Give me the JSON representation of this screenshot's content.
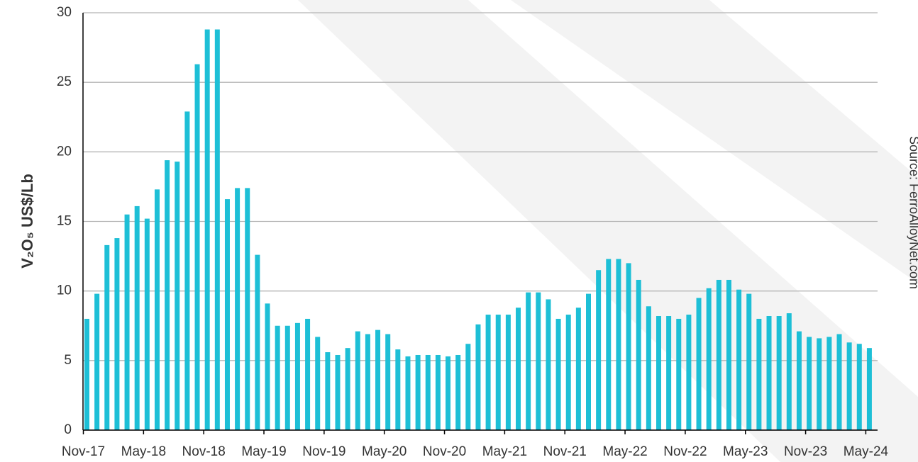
{
  "chart_data": {
    "type": "bar",
    "y_label": "V₂O₅ US$/Lb",
    "source": "Source: FerroAlloyNet.com",
    "categories": [
      "Nov-17",
      null,
      null,
      null,
      null,
      null,
      "May-18",
      null,
      null,
      null,
      null,
      null,
      "Nov-18",
      null,
      null,
      null,
      null,
      null,
      "May-19",
      null,
      null,
      null,
      null,
      null,
      "Nov-19",
      null,
      null,
      null,
      null,
      null,
      "May-20",
      null,
      null,
      null,
      null,
      null,
      "Nov-20",
      null,
      null,
      null,
      null,
      null,
      "May-21",
      null,
      null,
      null,
      null,
      null,
      "Nov-21",
      null,
      null,
      null,
      null,
      null,
      "May-22",
      null,
      null,
      null,
      null,
      null,
      "Nov-22",
      null,
      null,
      null,
      null,
      null,
      "May-23",
      null,
      null,
      null,
      null,
      null,
      "Nov-23",
      null,
      null,
      null,
      null,
      null,
      "May-24"
    ],
    "values": [
      8.0,
      9.8,
      13.3,
      13.8,
      15.5,
      16.1,
      15.2,
      17.3,
      19.4,
      19.3,
      22.9,
      26.3,
      28.8,
      28.8,
      16.6,
      17.4,
      17.4,
      12.6,
      9.1,
      7.5,
      7.5,
      7.7,
      8.0,
      6.7,
      5.6,
      5.4,
      5.9,
      7.1,
      6.9,
      7.2,
      6.9,
      5.8,
      5.3,
      5.4,
      5.4,
      5.4,
      5.3,
      5.4,
      6.2,
      7.6,
      8.3,
      8.3,
      8.3,
      8.8,
      9.9,
      9.9,
      9.4,
      8.0,
      8.3,
      8.8,
      9.8,
      11.5,
      12.3,
      12.3,
      12.0,
      10.8,
      8.9,
      8.2,
      8.2,
      8.0,
      8.3,
      9.5,
      10.2,
      10.8,
      10.8,
      10.1,
      9.8,
      8.0,
      8.2,
      8.2,
      8.4,
      7.1,
      6.7,
      6.6,
      6.7,
      6.9,
      6.3,
      6.2,
      5.9
    ],
    "color": "#1dbfd6",
    "ylim": [
      0,
      30
    ],
    "yticks": [
      0,
      5,
      10,
      15,
      20,
      25,
      30
    ],
    "grid": true
  }
}
